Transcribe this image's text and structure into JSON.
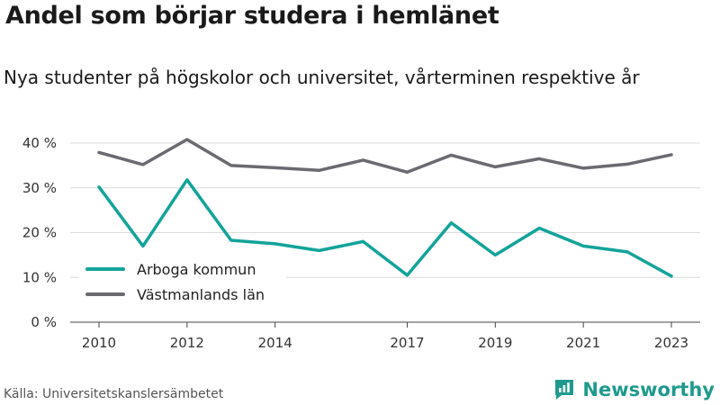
{
  "title": "Andel som börjar studera i hemlänet",
  "subtitle": "Nya studenter på högskolor och universitet, vårterminen respektive år",
  "source": "Källa: Universitetskanslersämbetet",
  "brand": {
    "name": "Newsworthy",
    "icon": "newsworthy-logo-icon",
    "color": "#1f9a8e"
  },
  "chart_data": {
    "type": "line",
    "x": [
      2010,
      2011,
      2012,
      2013,
      2014,
      2015,
      2016,
      2017,
      2018,
      2019,
      2020,
      2021,
      2022,
      2023
    ],
    "x_tick_values": [
      2010,
      2012,
      2014,
      2017,
      2019,
      2021,
      2023
    ],
    "x_tick_labels": [
      "2010",
      "2012",
      "2014",
      "2017",
      "2019",
      "2021",
      "2023"
    ],
    "y_ticks": [
      0,
      10,
      20,
      30,
      40
    ],
    "y_tick_labels": [
      "0 %",
      "10 %",
      "20 %",
      "30 %",
      "40 %"
    ],
    "ylim": [
      0,
      40
    ],
    "grid": true,
    "legend_position": "bottom-left",
    "series": [
      {
        "name": "Arboga kommun",
        "color": "#13a39a",
        "values": [
          30.2,
          17.0,
          31.8,
          18.3,
          17.5,
          16.0,
          18.0,
          10.5,
          22.2,
          15.0,
          21.0,
          17.0,
          15.7,
          10.3
        ]
      },
      {
        "name": "Västmanlands län",
        "color": "#6b6a70",
        "values": [
          37.9,
          35.2,
          40.8,
          35.0,
          34.5,
          33.9,
          36.2,
          33.5,
          37.3,
          34.7,
          36.5,
          34.4,
          35.3,
          37.4
        ]
      }
    ]
  }
}
